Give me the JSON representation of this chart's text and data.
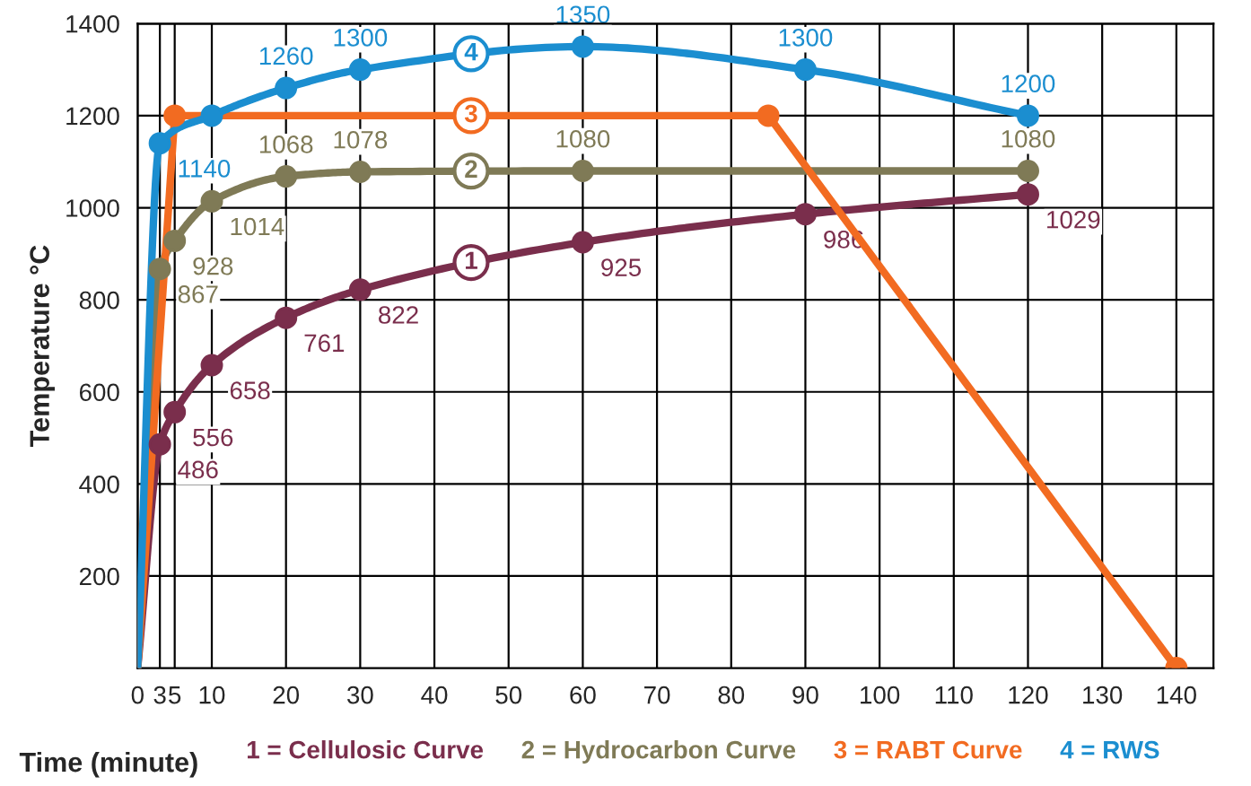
{
  "chart_data": {
    "type": "line",
    "xlabel": "Time (minute)",
    "ylabel": "Temperature °C",
    "xlim": [
      0,
      145
    ],
    "ylim": [
      0,
      1400
    ],
    "xticks": [
      0,
      3,
      5,
      10,
      20,
      30,
      40,
      50,
      60,
      70,
      80,
      90,
      100,
      110,
      120,
      130,
      140
    ],
    "yticks": [
      200,
      400,
      600,
      800,
      1000,
      1200,
      1400
    ],
    "grid": true,
    "legend": "bottom",
    "marker": "circle",
    "line_style": "solid",
    "series": [
      {
        "name": "1 = Cellulosic Curve",
        "color": "#7a2e4c",
        "x": [
          0,
          3,
          5,
          10,
          20,
          30,
          60,
          90,
          120
        ],
        "values": [
          0,
          486,
          556,
          658,
          761,
          822,
          925,
          986,
          1029
        ],
        "value_labels": [
          null,
          "486",
          "556",
          "658",
          "761",
          "822",
          "925",
          "986",
          "1029"
        ]
      },
      {
        "name": "2 = Hydrocarbon Curve",
        "color": "#7f7a56",
        "x": [
          0,
          3,
          5,
          10,
          20,
          30,
          60,
          120
        ],
        "values": [
          0,
          867,
          928,
          1014,
          1068,
          1078,
          1080,
          1080
        ],
        "value_labels": [
          null,
          "867",
          "928",
          "1014",
          "1068",
          "1078",
          "1080",
          "1080"
        ]
      },
      {
        "name": "3 = RABT Curve",
        "color": "#f26b21",
        "x": [
          0,
          5,
          85,
          140
        ],
        "values": [
          0,
          1200,
          1200,
          0
        ],
        "value_labels": [
          null,
          null,
          null,
          null
        ]
      },
      {
        "name": "4 = RWS",
        "color": "#1b8ed0",
        "x": [
          0,
          3,
          10,
          20,
          30,
          60,
          90,
          120
        ],
        "values": [
          0,
          1140,
          1200,
          1260,
          1300,
          1350,
          1300,
          1200
        ],
        "value_labels": [
          null,
          "1140",
          null,
          "1260",
          "1300",
          "1350",
          "1300",
          "1200"
        ]
      }
    ],
    "annotations": [
      "1",
      "2",
      "3",
      "4"
    ]
  }
}
